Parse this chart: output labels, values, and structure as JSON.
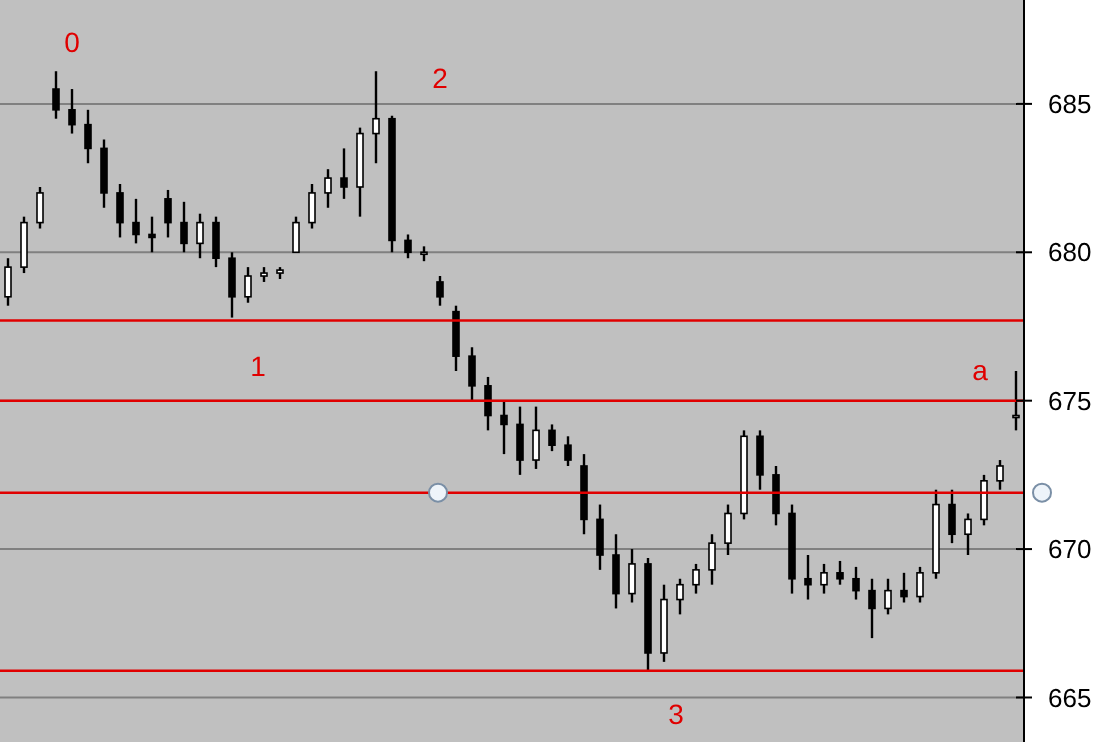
{
  "chart_data": {
    "type": "candlestick",
    "categories": [
      null,
      null,
      null,
      null,
      null,
      null,
      null,
      null,
      null,
      null,
      null,
      null,
      null,
      null,
      null,
      null,
      null,
      null,
      null,
      null,
      null,
      null,
      null,
      null,
      null,
      null,
      null,
      null,
      null,
      null,
      null,
      null,
      null,
      null,
      null,
      null,
      null,
      null,
      null,
      null,
      null,
      null,
      null,
      null,
      null,
      null,
      null,
      null,
      null,
      null,
      null,
      null,
      null,
      null,
      null,
      null,
      null,
      null,
      null,
      null,
      null,
      null,
      null,
      null
    ],
    "ohlc": [
      [
        678.5,
        679.8,
        678.2,
        679.5
      ],
      [
        679.5,
        681.2,
        679.3,
        681
      ],
      [
        681,
        682.2,
        680.8,
        682
      ],
      [
        685.5,
        686.1,
        684.5,
        684.8
      ],
      [
        684.8,
        685.5,
        684,
        684.3
      ],
      [
        684.3,
        684.8,
        683,
        683.5
      ],
      [
        683.5,
        683.8,
        681.5,
        682
      ],
      [
        682,
        682.3,
        680.5,
        681
      ],
      [
        681,
        681.8,
        680.3,
        680.6
      ],
      [
        680.6,
        681.2,
        680,
        680.5
      ],
      [
        681.8,
        682.1,
        680.5,
        681
      ],
      [
        681,
        681.7,
        680,
        680.3
      ],
      [
        680.3,
        681.3,
        679.8,
        681
      ],
      [
        681,
        681.2,
        679.5,
        679.8
      ],
      [
        679.8,
        680,
        677.8,
        678.5
      ],
      [
        678.5,
        679.5,
        678.3,
        679.2
      ],
      [
        679.2,
        679.5,
        679,
        679.3
      ],
      [
        679.3,
        679.5,
        679.1,
        679.4
      ],
      [
        680,
        681.2,
        680,
        681
      ],
      [
        681,
        682.3,
        680.8,
        682
      ],
      [
        682,
        682.8,
        681.5,
        682.5
      ],
      [
        682.5,
        683.5,
        681.8,
        682.2
      ],
      [
        682.2,
        684.2,
        681.2,
        684
      ],
      [
        684,
        686.1,
        683,
        684.5
      ],
      [
        684.5,
        684.6,
        680,
        680.4
      ],
      [
        680.4,
        680.6,
        679.8,
        680
      ],
      [
        680,
        680.2,
        679.7,
        680
      ],
      [
        679,
        679.2,
        678.2,
        678.5
      ],
      [
        678,
        678.2,
        676,
        676.5
      ],
      [
        676.5,
        676.8,
        675,
        675.5
      ],
      [
        675.5,
        675.8,
        674,
        674.5
      ],
      [
        674.5,
        675,
        673.2,
        674.2
      ],
      [
        674.2,
        674.8,
        672.5,
        673
      ],
      [
        673,
        674.8,
        672.7,
        674
      ],
      [
        674,
        674.2,
        673.3,
        673.5
      ],
      [
        673.5,
        673.8,
        672.8,
        673
      ],
      [
        672.8,
        673.2,
        670.5,
        671
      ],
      [
        671,
        671.5,
        669.3,
        669.8
      ],
      [
        669.8,
        670.5,
        668,
        668.5
      ],
      [
        668.5,
        670,
        668.2,
        669.5
      ],
      [
        669.5,
        669.7,
        665.9,
        666.5
      ],
      [
        666.5,
        668.8,
        666.2,
        668.3
      ],
      [
        668.3,
        669,
        667.8,
        668.8
      ],
      [
        668.8,
        669.5,
        668.5,
        669.3
      ],
      [
        669.3,
        670.5,
        668.8,
        670.2
      ],
      [
        670.2,
        671.5,
        669.8,
        671.2
      ],
      [
        671.2,
        674,
        671,
        673.8
      ],
      [
        673.8,
        674,
        672,
        672.5
      ],
      [
        672.5,
        672.8,
        670.8,
        671.2
      ],
      [
        671.2,
        671.5,
        668.5,
        669
      ],
      [
        669,
        669.8,
        668.3,
        668.8
      ],
      [
        668.8,
        669.5,
        668.5,
        669.2
      ],
      [
        669.2,
        669.6,
        668.8,
        669
      ],
      [
        669,
        669.4,
        668.3,
        668.6
      ],
      [
        668.6,
        669,
        667,
        668
      ],
      [
        668,
        669,
        667.8,
        668.6
      ],
      [
        668.6,
        669.2,
        668.2,
        668.4
      ],
      [
        668.4,
        669.4,
        668.2,
        669.2
      ],
      [
        669.2,
        672,
        669,
        671.5
      ],
      [
        671.5,
        672,
        670.2,
        670.5
      ],
      [
        670.5,
        671.2,
        669.8,
        671
      ],
      [
        671,
        672.5,
        670.8,
        672.3
      ],
      [
        672.3,
        673,
        672,
        672.8
      ],
      [
        674.5,
        676,
        674,
        674.5
      ]
    ],
    "ylim": [
      663.5,
      688.5
    ],
    "yticks": [
      665,
      670,
      675,
      680,
      685
    ],
    "grid": "y",
    "ref_lines": [
      {
        "axis": "y",
        "value": 677.7,
        "color": "#e00000"
      },
      {
        "axis": "y",
        "value": 675,
        "color": "#e00000"
      },
      {
        "axis": "y",
        "value": 671.9,
        "color": "#e00000"
      },
      {
        "axis": "y",
        "value": 665.9,
        "color": "#e00000"
      }
    ],
    "annotations": [
      "0",
      "1",
      "2",
      "3",
      "a"
    ]
  }
}
